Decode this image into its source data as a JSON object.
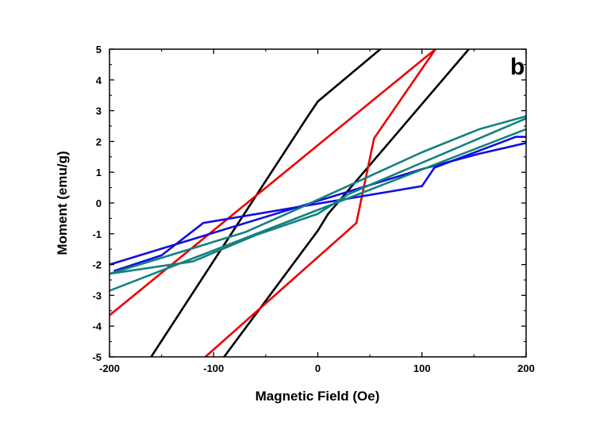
{
  "chart_data": {
    "type": "line",
    "panel_label": "b",
    "xlabel": "Magnetic Field (Oe)",
    "ylabel": "Moment (emu/g)",
    "xlim": [
      -200,
      200
    ],
    "ylim": [
      -5,
      5
    ],
    "xticks": [
      -200,
      -100,
      0,
      100,
      200
    ],
    "xtick_labels": [
      "-200",
      "-100",
      "0",
      "100",
      "200"
    ],
    "yticks": [
      -5,
      -4,
      -3,
      -2,
      -1,
      0,
      1,
      2,
      3,
      4,
      5
    ],
    "ytick_labels": [
      "-5",
      "-4",
      "-3",
      "-2",
      "-1",
      "0",
      "1",
      "2",
      "3",
      "4",
      "5"
    ],
    "grid": false,
    "legend": "none",
    "series": [
      {
        "color": "#000000",
        "points": [
          [
            -160,
            -5
          ],
          [
            -10,
            2.8
          ],
          [
            0,
            3.3
          ],
          [
            60,
            5
          ]
        ]
      },
      {
        "color": "#000000",
        "points": [
          [
            -90,
            -5
          ],
          [
            0,
            -0.9
          ],
          [
            10,
            -0.35
          ],
          [
            145,
            5
          ]
        ]
      },
      {
        "color": "#ee0000",
        "points": [
          [
            -200,
            -3.65
          ],
          [
            113,
            5
          ]
        ]
      },
      {
        "color": "#ee0000",
        "points": [
          [
            -108,
            -5
          ],
          [
            37,
            -0.65
          ],
          [
            54,
            2.1
          ],
          [
            113,
            5
          ]
        ]
      },
      {
        "color": "#1010dd",
        "points": [
          [
            -200,
            -2.0
          ],
          [
            100,
            1.1
          ],
          [
            155,
            1.6
          ],
          [
            200,
            1.95
          ]
        ]
      },
      {
        "color": "#1010dd",
        "points": [
          [
            -195,
            -2.2
          ],
          [
            -150,
            -1.7
          ],
          [
            -110,
            -0.65
          ],
          [
            100,
            0.55
          ],
          [
            112,
            1.15
          ],
          [
            190,
            2.15
          ],
          [
            200,
            2.15
          ]
        ]
      },
      {
        "color": "#158080",
        "points": [
          [
            -200,
            -2.85
          ],
          [
            200,
            2.4
          ]
        ]
      },
      {
        "color": "#158080",
        "points": [
          [
            -200,
            -2.3
          ],
          [
            -70,
            -0.95
          ],
          [
            -20,
            -0.2
          ],
          [
            100,
            1.65
          ],
          [
            155,
            2.4
          ],
          [
            200,
            2.82
          ]
        ]
      },
      {
        "color": "#158080",
        "points": [
          [
            -200,
            -2.3
          ],
          [
            -120,
            -1.9
          ],
          [
            -60,
            -1.05
          ],
          [
            0,
            -0.35
          ],
          [
            30,
            0.3
          ],
          [
            200,
            2.75
          ]
        ]
      }
    ]
  }
}
